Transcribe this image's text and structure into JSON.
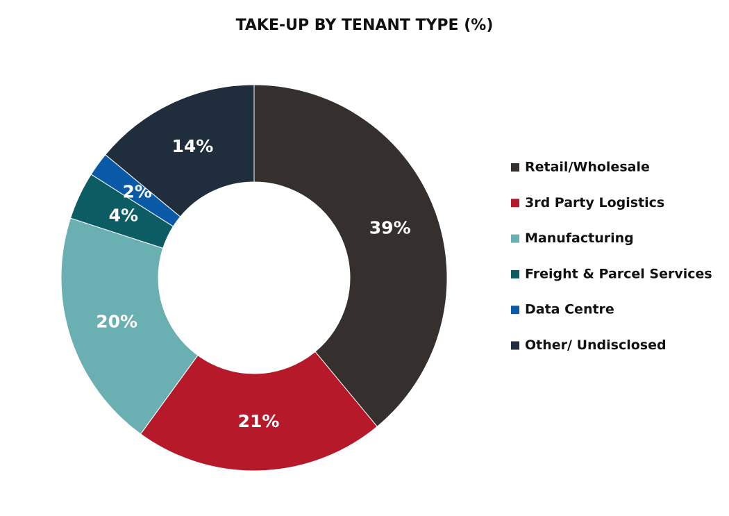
{
  "chart_data": {
    "type": "donut",
    "title": "TAKE-UP BY TENANT TYPE (%)",
    "categories": [
      "Retail/Wholesale",
      "3rd Party Logistics",
      "Manufacturing",
      "Freight & Parcel Services",
      "Data Centre",
      "Other/ Undisclosed"
    ],
    "values": [
      39,
      21,
      20,
      4,
      2,
      14
    ],
    "value_labels": [
      "39%",
      "21%",
      "20%",
      "4%",
      "2%",
      "14%"
    ],
    "colors": [
      "#352f2d",
      "#b5192a",
      "#6aafb2",
      "#0b5c63",
      "#0b5aa8",
      "#1f2d3d"
    ],
    "legend": "right"
  }
}
